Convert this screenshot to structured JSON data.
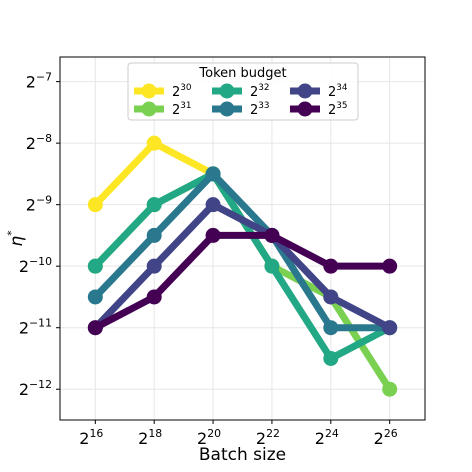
{
  "chart_data": {
    "type": "line",
    "xlabel": "Batch size",
    "ylabel": "η*",
    "x_scale": "log2",
    "y_scale": "log2",
    "x_exponents": [
      16,
      18,
      20,
      22,
      24,
      26
    ],
    "y_exponents": [
      -7,
      -8,
      -9,
      -10,
      -11,
      -12
    ],
    "x_tick_base": "2",
    "y_tick_base": "2",
    "xlim_exp": [
      14.8,
      27.2
    ],
    "ylim_exp": [
      -12.5,
      -6.6
    ],
    "grid": true,
    "legend": {
      "title": "Token budget",
      "placement": "top-center",
      "ncol": 3
    },
    "series": [
      {
        "name_base": "2",
        "name_exp": "30",
        "color": "#fde725",
        "x_exp": [
          16,
          18,
          20
        ],
        "y_exp": [
          -9,
          -8,
          -8.5
        ]
      },
      {
        "name_base": "2",
        "name_exp": "31",
        "color": "#7ad151",
        "x_exp": [
          16,
          18,
          20,
          22,
          24,
          26
        ],
        "y_exp": [
          -10,
          -9,
          -8.5,
          -10,
          -10.5,
          -12
        ]
      },
      {
        "name_base": "2",
        "name_exp": "32",
        "color": "#22a884",
        "x_exp": [
          16,
          18,
          20,
          22,
          24,
          26
        ],
        "y_exp": [
          -10,
          -9,
          -8.5,
          -10,
          -11.5,
          -11
        ]
      },
      {
        "name_base": "2",
        "name_exp": "33",
        "color": "#2a788e",
        "x_exp": [
          16,
          18,
          20,
          22,
          24,
          26
        ],
        "y_exp": [
          -10.5,
          -9.5,
          -8.5,
          -9.5,
          -11,
          -11
        ]
      },
      {
        "name_base": "2",
        "name_exp": "34",
        "color": "#414487",
        "x_exp": [
          16,
          18,
          20,
          22,
          24,
          26
        ],
        "y_exp": [
          -11,
          -10,
          -9,
          -9.5,
          -10.5,
          -11
        ]
      },
      {
        "name_base": "2",
        "name_exp": "35",
        "color": "#440154",
        "x_exp": [
          16,
          18,
          20,
          22,
          24,
          26
        ],
        "y_exp": [
          -11,
          -10.5,
          -9.5,
          -9.5,
          -10,
          -10
        ]
      }
    ]
  }
}
